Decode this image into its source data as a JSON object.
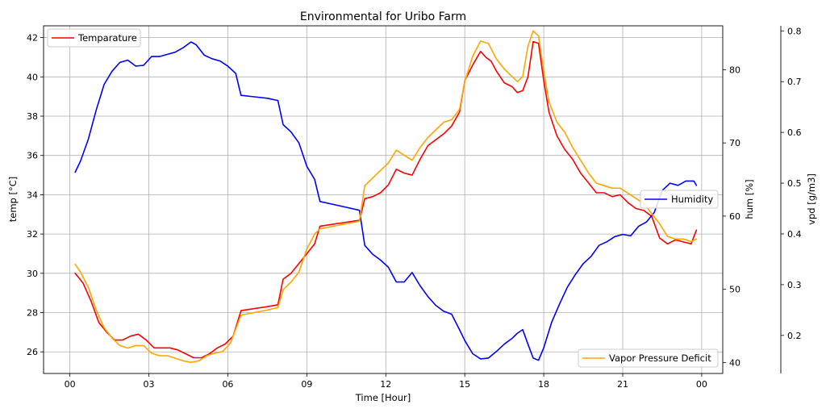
{
  "chart_data": {
    "type": "line",
    "title": "Environmental for Uribo Farm",
    "xlabel": "Time [Hour]",
    "x_ticks": [
      "00",
      "03",
      "06",
      "09",
      "12",
      "15",
      "18",
      "21",
      "00"
    ],
    "xlim": [
      -1,
      24.8
    ],
    "grid": true,
    "axes": {
      "temp": {
        "label": "temp [°C]",
        "ylim": [
          24.9,
          42.6
        ],
        "ticks": [
          26,
          28,
          30,
          32,
          34,
          36,
          38,
          40,
          42
        ],
        "side": "left"
      },
      "hum": {
        "label": "hum [%]",
        "ylim": [
          38.5,
          86
        ],
        "ticks": [
          40,
          50,
          60,
          70,
          80
        ],
        "side": "right"
      },
      "vpd": {
        "label": "vpd [g/m3]",
        "ylim": [
          0.125,
          0.81
        ],
        "ticks": [
          0.2,
          0.3,
          0.4,
          0.5,
          0.6,
          0.7,
          0.8
        ],
        "side": "right-outer"
      }
    },
    "series": [
      {
        "name": "Temparature",
        "axis": "temp",
        "color": "#ff0000",
        "legend": "upper-left",
        "x": [
          0.2,
          0.5,
          0.8,
          1.1,
          1.4,
          1.7,
          2.0,
          2.3,
          2.6,
          2.9,
          3.2,
          3.5,
          3.8,
          4.1,
          4.4,
          4.7,
          5.0,
          5.3,
          5.6,
          5.9,
          6.2,
          6.5,
          7.0,
          7.5,
          7.9,
          8.1,
          8.4,
          8.7,
          9.0,
          9.3,
          9.5,
          10.0,
          10.5,
          11.0,
          11.2,
          11.5,
          11.8,
          12.1,
          12.4,
          12.7,
          13.0,
          13.3,
          13.6,
          13.9,
          14.2,
          14.5,
          14.8,
          15.0,
          15.3,
          15.6,
          15.8,
          16.0,
          16.2,
          16.5,
          16.8,
          17.0,
          17.2,
          17.4,
          17.6,
          17.8,
          18.0,
          18.2,
          18.5,
          18.8,
          19.1,
          19.4,
          19.7,
          20.0,
          20.3,
          20.6,
          20.9,
          21.2,
          21.5,
          21.8,
          22.1,
          22.4,
          22.7,
          23.0,
          23.3,
          23.6,
          23.8
        ],
        "values": [
          30.0,
          29.5,
          28.6,
          27.5,
          27.0,
          26.6,
          26.6,
          26.8,
          26.9,
          26.6,
          26.2,
          26.2,
          26.2,
          26.1,
          25.9,
          25.7,
          25.7,
          25.9,
          26.2,
          26.4,
          26.8,
          28.1,
          28.2,
          28.3,
          28.4,
          29.7,
          30.0,
          30.5,
          31.0,
          31.5,
          32.4,
          32.5,
          32.6,
          32.7,
          33.8,
          33.9,
          34.1,
          34.5,
          35.3,
          35.1,
          35.0,
          35.8,
          36.5,
          36.8,
          37.1,
          37.5,
          38.2,
          39.8,
          40.6,
          41.3,
          41.0,
          40.8,
          40.3,
          39.7,
          39.5,
          39.2,
          39.3,
          40.0,
          41.8,
          41.7,
          39.8,
          38.2,
          37.0,
          36.3,
          35.8,
          35.1,
          34.6,
          34.1,
          34.1,
          33.9,
          34.0,
          33.6,
          33.3,
          33.2,
          32.9,
          31.8,
          31.5,
          31.7,
          31.6,
          31.5,
          32.2
        ]
      },
      {
        "name": "Humidity",
        "axis": "hum",
        "color": "#0000ff",
        "legend": "center-right",
        "x": [
          0.2,
          0.4,
          0.7,
          1.0,
          1.3,
          1.6,
          1.9,
          2.2,
          2.5,
          2.8,
          3.1,
          3.4,
          3.7,
          4.0,
          4.3,
          4.6,
          4.8,
          5.1,
          5.4,
          5.7,
          6.0,
          6.3,
          6.5,
          7.0,
          7.5,
          7.9,
          8.1,
          8.4,
          8.7,
          9.0,
          9.3,
          9.5,
          10.0,
          10.5,
          11.0,
          11.2,
          11.5,
          11.8,
          12.1,
          12.4,
          12.7,
          13.0,
          13.3,
          13.6,
          13.9,
          14.2,
          14.5,
          14.8,
          15.0,
          15.3,
          15.6,
          15.9,
          16.2,
          16.5,
          16.8,
          17.0,
          17.2,
          17.4,
          17.6,
          17.8,
          18.0,
          18.3,
          18.6,
          18.9,
          19.2,
          19.5,
          19.8,
          20.1,
          20.4,
          20.7,
          21.0,
          21.3,
          21.6,
          21.9,
          22.2,
          22.5,
          22.8,
          23.1,
          23.4,
          23.7,
          23.8
        ],
        "values": [
          66.0,
          67.5,
          70.5,
          74.5,
          78.0,
          79.8,
          81.0,
          81.3,
          80.5,
          80.6,
          81.8,
          81.8,
          82.1,
          82.4,
          83.0,
          83.8,
          83.4,
          82.0,
          81.5,
          81.2,
          80.5,
          79.5,
          76.5,
          76.3,
          76.1,
          75.8,
          72.5,
          71.5,
          70.0,
          66.8,
          65.0,
          62.0,
          61.6,
          61.2,
          60.8,
          56.0,
          54.8,
          54.0,
          53.0,
          51.0,
          51.0,
          52.3,
          50.5,
          49.0,
          47.8,
          47.0,
          46.6,
          44.5,
          43.0,
          41.2,
          40.5,
          40.6,
          41.5,
          42.5,
          43.3,
          44.0,
          44.5,
          42.5,
          40.6,
          40.3,
          42.0,
          45.5,
          48.0,
          50.3,
          52.0,
          53.5,
          54.5,
          56.0,
          56.5,
          57.2,
          57.5,
          57.3,
          58.6,
          59.2,
          60.5,
          63.5,
          64.5,
          64.2,
          64.8,
          64.8,
          64.2
        ]
      },
      {
        "name": "Vapor Pressure Deficit",
        "axis": "vpd",
        "color": "#ffa500",
        "legend": "lower-right",
        "x": [
          0.2,
          0.4,
          0.7,
          1.0,
          1.3,
          1.6,
          1.9,
          2.2,
          2.5,
          2.8,
          3.1,
          3.4,
          3.7,
          4.0,
          4.3,
          4.6,
          4.9,
          5.2,
          5.5,
          5.8,
          6.1,
          6.5,
          7.0,
          7.5,
          7.9,
          8.1,
          8.4,
          8.7,
          9.0,
          9.3,
          9.5,
          10.0,
          10.5,
          11.0,
          11.2,
          11.5,
          11.8,
          12.1,
          12.4,
          12.7,
          13.0,
          13.3,
          13.6,
          13.9,
          14.2,
          14.5,
          14.8,
          15.0,
          15.3,
          15.6,
          15.9,
          16.2,
          16.5,
          16.8,
          17.0,
          17.2,
          17.4,
          17.6,
          17.8,
          18.0,
          18.2,
          18.5,
          18.8,
          19.1,
          19.4,
          19.7,
          20.0,
          20.3,
          20.6,
          20.9,
          21.2,
          21.5,
          21.8,
          22.1,
          22.4,
          22.7,
          23.0,
          23.3,
          23.6,
          23.8
        ],
        "values": [
          0.34,
          0.325,
          0.295,
          0.25,
          0.215,
          0.195,
          0.18,
          0.175,
          0.18,
          0.18,
          0.165,
          0.16,
          0.16,
          0.155,
          0.15,
          0.147,
          0.15,
          0.16,
          0.165,
          0.168,
          0.185,
          0.24,
          0.245,
          0.25,
          0.255,
          0.29,
          0.305,
          0.325,
          0.37,
          0.4,
          0.41,
          0.415,
          0.42,
          0.425,
          0.495,
          0.51,
          0.525,
          0.54,
          0.565,
          0.555,
          0.545,
          0.57,
          0.59,
          0.605,
          0.62,
          0.625,
          0.645,
          0.7,
          0.75,
          0.78,
          0.775,
          0.745,
          0.725,
          0.71,
          0.7,
          0.71,
          0.77,
          0.8,
          0.79,
          0.72,
          0.66,
          0.62,
          0.6,
          0.57,
          0.545,
          0.52,
          0.5,
          0.495,
          0.49,
          0.49,
          0.48,
          0.47,
          0.46,
          0.44,
          0.42,
          0.395,
          0.39,
          0.39,
          0.385,
          0.39
        ]
      }
    ]
  }
}
